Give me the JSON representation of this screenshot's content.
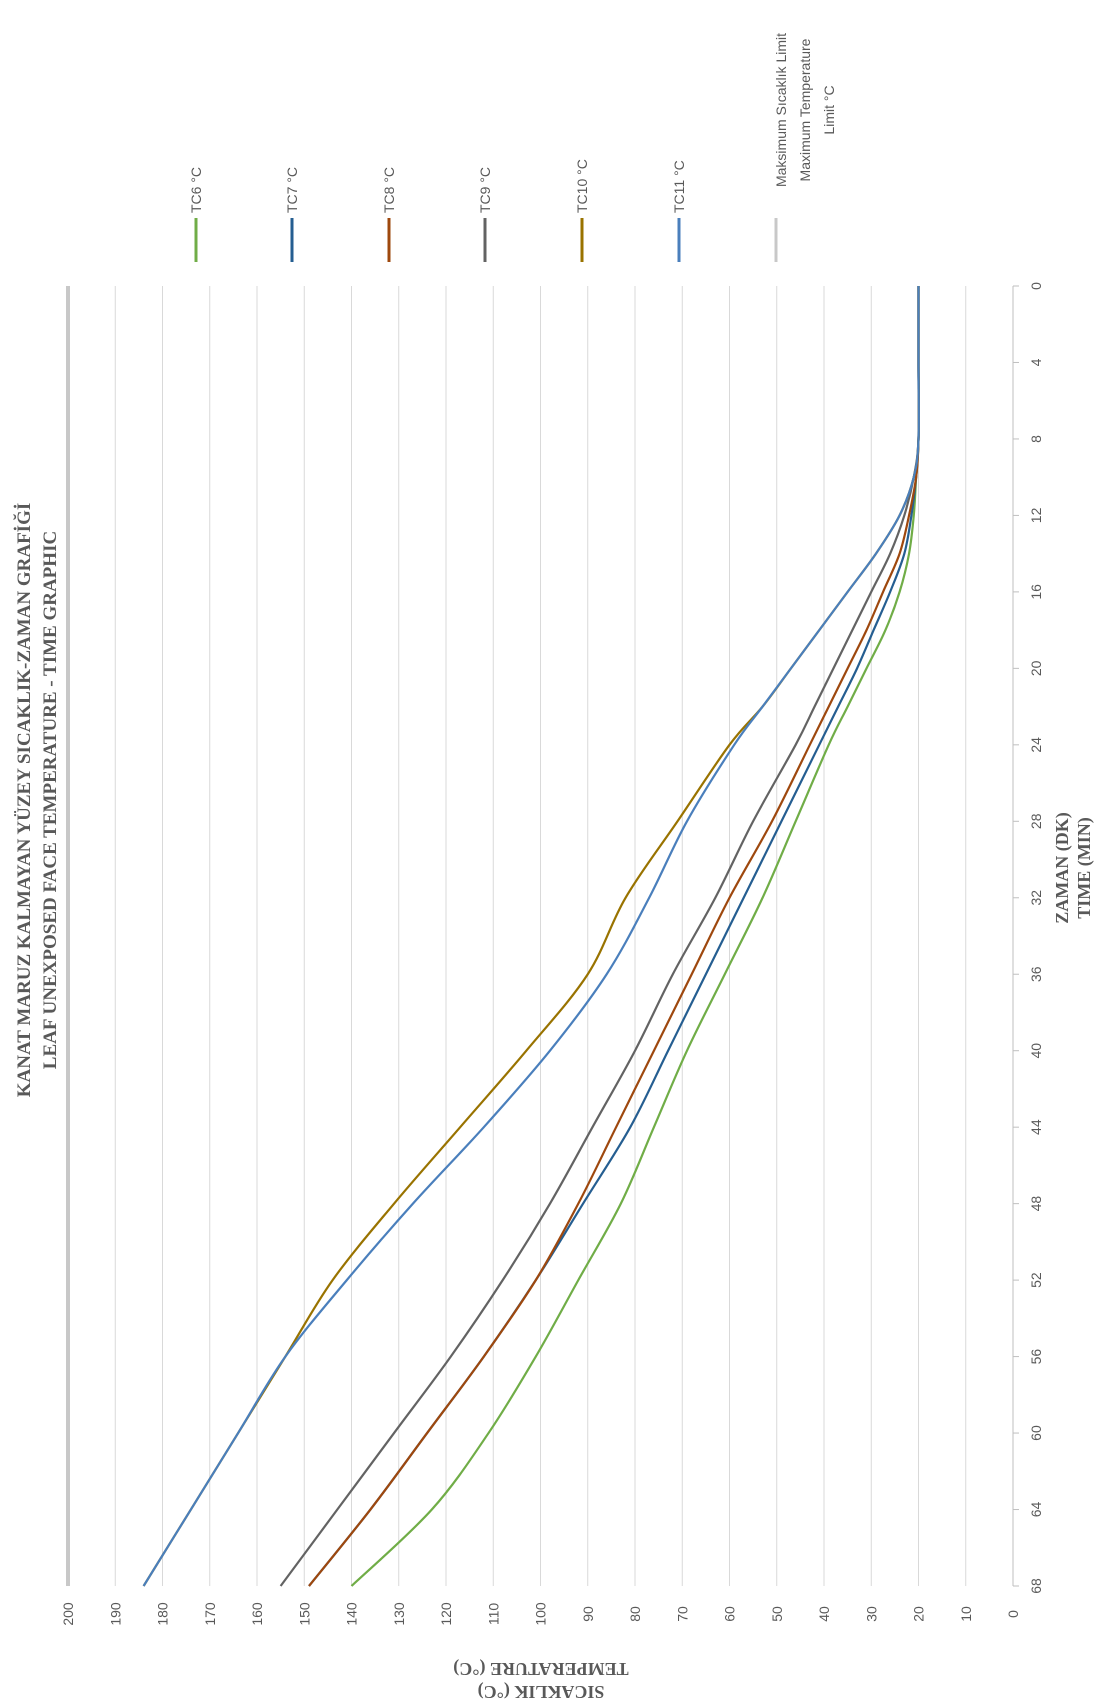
{
  "chart_data": {
    "type": "line",
    "title": "KANAT MARUZ KALMAYAN YÜZEY SICAKLIK-ZAMAN GRAFİĞİ",
    "subtitle": "LEAF UNEXPOSED FACE TEMPERATURE - TIME GRAPHIC",
    "xlabel": [
      "ZAMAN (DK)",
      "TIME (MIN)"
    ],
    "ylabel": [
      "SICAKLIK (°C)",
      "TEMPERATURE (°C)"
    ],
    "xlim": [
      0,
      68
    ],
    "ylim": [
      0,
      200
    ],
    "x_ticks": [
      "0",
      "4",
      "8",
      "12",
      "16",
      "20",
      "24",
      "28",
      "32",
      "36",
      "40",
      "44",
      "48",
      "52",
      "56",
      "60",
      "64",
      "68"
    ],
    "y_ticks": [
      "0",
      "10",
      "20",
      "30",
      "40",
      "50",
      "60",
      "70",
      "80",
      "90",
      "100",
      "110",
      "120",
      "130",
      "140",
      "150",
      "160",
      "170",
      "180",
      "190",
      "200"
    ],
    "grid": true,
    "orientation": "rotated 90° clockwise",
    "legend_position": "top",
    "series": [
      {
        "name": "TC6 °C",
        "color": "#70ad47",
        "x": [
          0,
          4,
          8,
          10,
          12,
          14,
          16,
          18,
          20,
          22,
          24,
          28,
          32,
          36,
          40,
          44,
          48,
          52,
          56,
          60,
          64,
          68
        ],
        "y": [
          20,
          20,
          20,
          20.5,
          21,
          22,
          24,
          27,
          31,
          35,
          39,
          46,
          53,
          61,
          69,
          76,
          83,
          92,
          101,
          111,
          123,
          140
        ]
      },
      {
        "name": "TC7 °C",
        "color": "#255e91",
        "x": [
          0,
          4,
          8,
          10,
          12,
          14,
          16,
          18,
          20,
          22,
          24,
          28,
          32,
          36,
          40,
          44,
          48,
          52,
          56,
          60,
          64,
          68
        ],
        "y": [
          20,
          20,
          20,
          20.5,
          21.5,
          23,
          26,
          29.5,
          33,
          37,
          41,
          49,
          57,
          65,
          73,
          81,
          91,
          101,
          112,
          124,
          136,
          149
        ]
      },
      {
        "name": "TC8 °C",
        "color": "#9e480e",
        "x": [
          0,
          4,
          8,
          10,
          12,
          14,
          16,
          18,
          20,
          22,
          24,
          28,
          32,
          36,
          40,
          44,
          48,
          52,
          56,
          60,
          64,
          68
        ],
        "y": [
          20,
          20,
          20,
          20.5,
          22,
          24,
          27.5,
          31,
          35,
          39,
          43,
          51,
          60,
          68,
          76,
          84,
          92,
          101,
          112,
          124,
          136,
          149
        ]
      },
      {
        "name": "TC9 °C",
        "color": "#636363",
        "x": [
          0,
          4,
          8,
          10,
          12,
          14,
          16,
          18,
          20,
          22,
          24,
          28,
          32,
          36,
          40,
          44,
          48,
          52,
          56,
          60,
          64,
          68
        ],
        "y": [
          20,
          20,
          20,
          21,
          23,
          26,
          30,
          34,
          38,
          42,
          46,
          55,
          63,
          72,
          80,
          89,
          98,
          108,
          119,
          131,
          143,
          155
        ]
      },
      {
        "name": "TC10 °C",
        "color": "#997300",
        "x": [
          0,
          4,
          8,
          10,
          12,
          14,
          16,
          18,
          20,
          22,
          24,
          28,
          32,
          36,
          40,
          44,
          48,
          52,
          56,
          60,
          64,
          68
        ],
        "y": [
          20,
          20,
          20,
          21,
          24,
          29,
          35,
          41,
          47,
          53,
          60,
          71,
          82,
          90,
          103,
          117,
          131,
          144,
          154,
          164,
          174,
          184
        ]
      },
      {
        "name": "TC11 °C",
        "color": "#4a7fbc",
        "x": [
          0,
          4,
          8,
          10,
          12,
          14,
          16,
          18,
          20,
          22,
          24,
          28,
          32,
          36,
          40,
          44,
          48,
          52,
          56,
          60,
          64,
          68
        ],
        "y": [
          20,
          20,
          20,
          21,
          24,
          29,
          35,
          41,
          47,
          53,
          59,
          69,
          77,
          86,
          98,
          112,
          127,
          141,
          154,
          164,
          174,
          184
        ]
      },
      {
        "name": "Maksimum Sıcaklık Limit Maximum Temperature Limit °C",
        "color": "#c8c8c8",
        "x": [
          0,
          68
        ],
        "y": [
          200,
          200
        ]
      }
    ]
  }
}
